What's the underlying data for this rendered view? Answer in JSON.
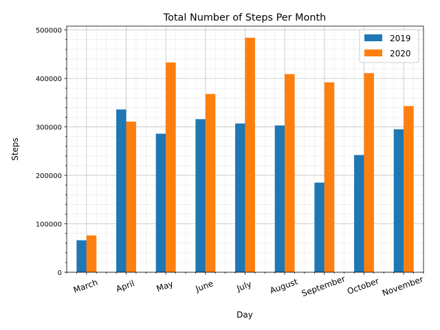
{
  "chart_data": {
    "type": "bar",
    "title": "Total Number of Steps Per Month",
    "xlabel": "Day",
    "ylabel": "Steps",
    "categories": [
      "March",
      "April",
      "May",
      "June",
      "July",
      "August",
      "September",
      "October",
      "November"
    ],
    "series": [
      {
        "name": "2019",
        "color": "#1f77b4",
        "values": [
          66000,
          336000,
          286000,
          316000,
          307000,
          303000,
          185000,
          242000,
          295000
        ]
      },
      {
        "name": "2020",
        "color": "#ff7f0e",
        "values": [
          76000,
          311000,
          433000,
          368000,
          484000,
          409000,
          392000,
          411000,
          343000
        ]
      }
    ],
    "ylim": [
      0,
      508000
    ],
    "yticks": [
      "0",
      "100000",
      "200000",
      "300000",
      "400000",
      "500000"
    ],
    "grid": true,
    "minor_grid": true,
    "legend_position": "top-right",
    "xtick_rotation": "-20"
  }
}
